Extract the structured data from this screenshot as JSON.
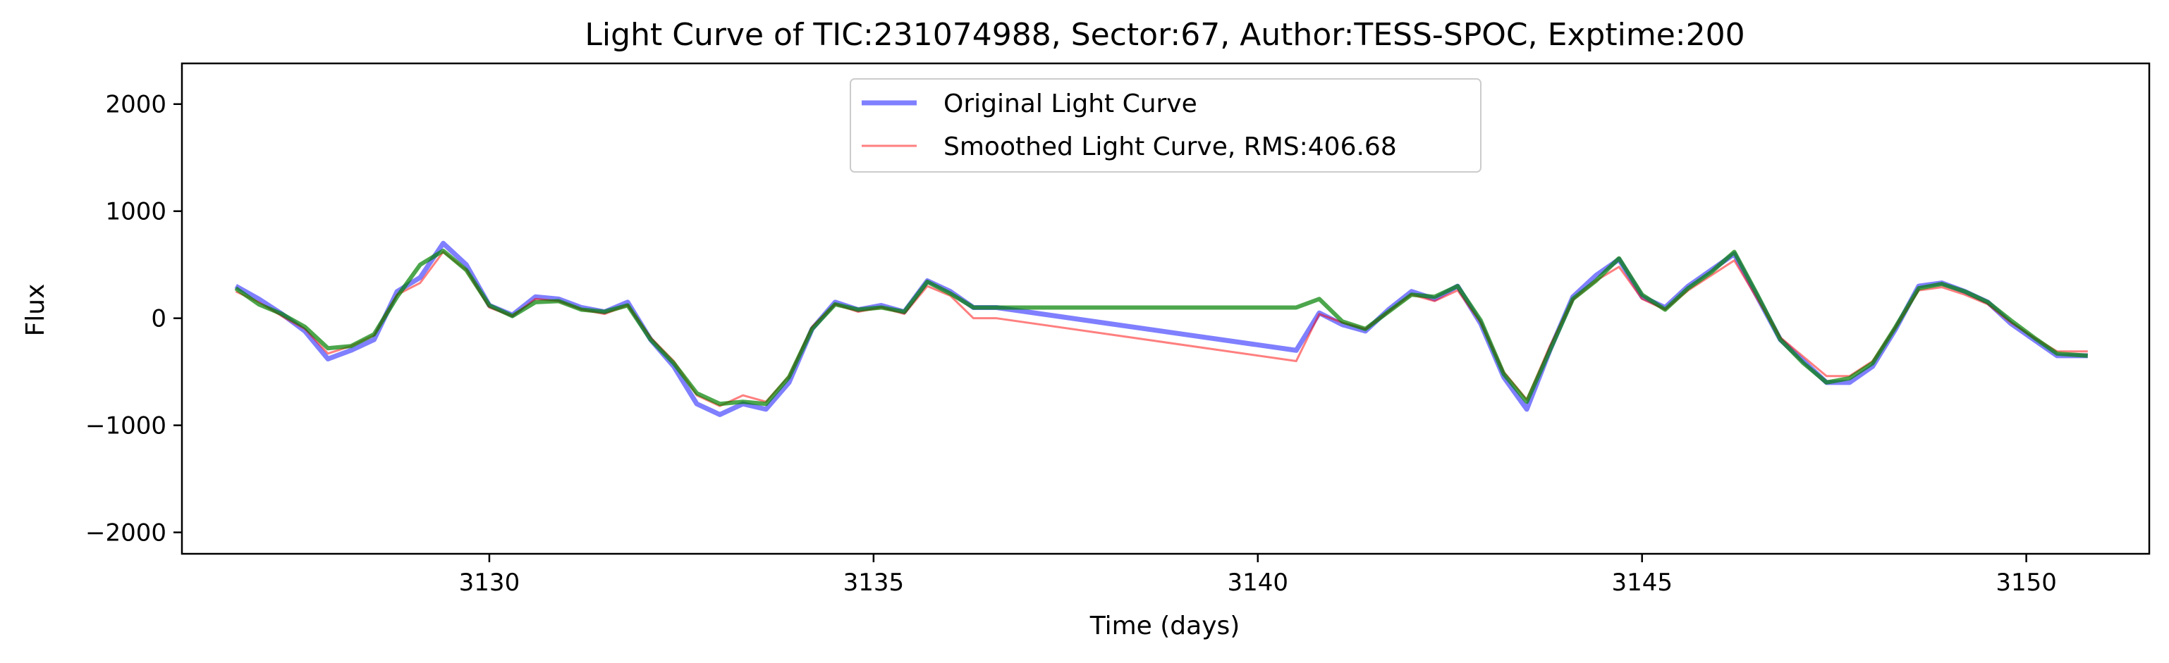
{
  "chart_data": {
    "type": "line",
    "title": "Light Curve of TIC:231074988, Sector:67, Author:TESS-SPOC, Exptime:200",
    "xlabel": "Time (days)",
    "ylabel": "Flux",
    "xlim": [
      3126.0,
      3151.6
    ],
    "ylim": [
      -2200,
      2380
    ],
    "x_ticks": [
      3130,
      3135,
      3140,
      3145,
      3150
    ],
    "x_tick_labels": [
      "3130",
      "3135",
      "3140",
      "3145",
      "3150"
    ],
    "y_ticks": [
      -2000,
      -1000,
      0,
      1000,
      2000
    ],
    "y_tick_labels": [
      "−2000",
      "−1000",
      "0",
      "1000",
      "2000"
    ],
    "grid": false,
    "legend_position": "top-center",
    "legend": [
      {
        "label": "Original Light Curve",
        "color": "#0000ff"
      },
      {
        "label": "Smoothed Light Curve, RMS:406.68",
        "color": "#ff0000"
      }
    ],
    "gap": [
      3136.6,
      3140.5
    ],
    "series": [
      {
        "name": "Original Light Curve",
        "color": "#0000ff",
        "opacity": 0.5,
        "x": [
          3126.7,
          3127.0,
          3127.3,
          3127.6,
          3127.9,
          3128.2,
          3128.5,
          3128.8,
          3129.1,
          3129.4,
          3129.7,
          3130.0,
          3130.3,
          3130.6,
          3130.9,
          3131.2,
          3131.5,
          3131.8,
          3132.1,
          3132.4,
          3132.7,
          3133.0,
          3133.3,
          3133.6,
          3133.9,
          3134.2,
          3134.5,
          3134.8,
          3135.1,
          3135.4,
          3135.7,
          3136.0,
          3136.3,
          3136.6,
          3140.5,
          3140.8,
          3141.1,
          3141.4,
          3141.7,
          3142.0,
          3142.3,
          3142.6,
          3142.9,
          3143.2,
          3143.5,
          3143.8,
          3144.1,
          3144.4,
          3144.7,
          3145.0,
          3145.3,
          3145.6,
          3145.9,
          3146.2,
          3146.5,
          3146.8,
          3147.1,
          3147.4,
          3147.7,
          3148.0,
          3148.3,
          3148.6,
          3148.9,
          3149.2,
          3149.5,
          3149.8,
          3150.1,
          3150.4,
          3150.8
        ],
        "y": [
          300,
          180,
          40,
          -120,
          -380,
          -300,
          -200,
          250,
          380,
          700,
          500,
          120,
          30,
          200,
          180,
          100,
          60,
          150,
          -200,
          -450,
          -800,
          -900,
          -800,
          -850,
          -600,
          -100,
          150,
          80,
          120,
          60,
          350,
          250,
          100,
          100,
          -300,
          50,
          -60,
          -120,
          80,
          250,
          180,
          300,
          -50,
          -550,
          -850,
          -300,
          200,
          400,
          550,
          200,
          100,
          300,
          450,
          600,
          200,
          -200,
          -400,
          -600,
          -600,
          -450,
          -100,
          300,
          330,
          250,
          150,
          -50,
          -200,
          -350,
          -350
        ]
      },
      {
        "name": "Smoothed Light Curve, RMS:406.68",
        "color": "#ff0000",
        "opacity": 0.5,
        "x": [
          3126.7,
          3127.0,
          3127.3,
          3127.6,
          3127.9,
          3128.2,
          3128.5,
          3128.8,
          3129.1,
          3129.4,
          3129.7,
          3130.0,
          3130.3,
          3130.6,
          3130.9,
          3131.2,
          3131.5,
          3131.8,
          3132.1,
          3132.4,
          3132.7,
          3133.0,
          3133.3,
          3133.6,
          3133.9,
          3134.2,
          3134.5,
          3134.8,
          3135.1,
          3135.4,
          3135.7,
          3136.0,
          3136.3,
          3136.6,
          3140.5,
          3140.8,
          3141.1,
          3141.4,
          3141.7,
          3142.0,
          3142.3,
          3142.6,
          3142.9,
          3143.2,
          3143.5,
          3143.8,
          3144.1,
          3144.4,
          3144.7,
          3145.0,
          3145.3,
          3145.6,
          3145.9,
          3146.2,
          3146.5,
          3146.8,
          3147.1,
          3147.4,
          3147.7,
          3148.0,
          3148.3,
          3148.6,
          3148.9,
          3149.2,
          3149.5,
          3149.8,
          3150.1,
          3150.4,
          3150.8
        ],
        "y": [
          250,
          150,
          20,
          -100,
          -330,
          -260,
          -160,
          220,
          330,
          620,
          450,
          100,
          20,
          180,
          160,
          80,
          40,
          120,
          -180,
          -400,
          -720,
          -820,
          -720,
          -780,
          -540,
          -80,
          130,
          60,
          100,
          40,
          300,
          210,
          0,
          0,
          -400,
          40,
          -40,
          -100,
          60,
          220,
          160,
          260,
          -40,
          -500,
          -760,
          -260,
          170,
          350,
          480,
          180,
          80,
          260,
          400,
          540,
          180,
          -180,
          -360,
          -540,
          -540,
          -400,
          -80,
          260,
          290,
          220,
          130,
          -40,
          -180,
          -310,
          -310
        ]
      },
      {
        "name": "",
        "color": "#008000",
        "opacity": 0.7,
        "x": [
          3126.7,
          3127.0,
          3127.3,
          3127.6,
          3127.9,
          3128.2,
          3128.5,
          3128.8,
          3129.1,
          3129.4,
          3129.7,
          3130.0,
          3130.3,
          3130.6,
          3130.9,
          3131.2,
          3131.5,
          3131.8,
          3132.1,
          3132.4,
          3132.7,
          3133.0,
          3133.3,
          3133.6,
          3133.9,
          3134.2,
          3134.5,
          3134.8,
          3135.1,
          3135.4,
          3135.7,
          3136.0,
          3136.3,
          3136.6,
          3140.5,
          3140.8,
          3141.1,
          3141.4,
          3141.7,
          3142.0,
          3142.3,
          3142.6,
          3142.9,
          3143.2,
          3143.5,
          3143.8,
          3144.1,
          3144.4,
          3144.7,
          3145.0,
          3145.3,
          3145.6,
          3145.9,
          3146.2,
          3146.5,
          3146.8,
          3147.1,
          3147.4,
          3147.7,
          3148.0,
          3148.3,
          3148.6,
          3148.9,
          3149.2,
          3149.5,
          3149.8,
          3150.1,
          3150.4,
          3150.8
        ],
        "y": [
          280,
          130,
          40,
          -80,
          -280,
          -260,
          -150,
          200,
          500,
          630,
          450,
          120,
          20,
          150,
          160,
          80,
          60,
          120,
          -200,
          -420,
          -700,
          -800,
          -780,
          -800,
          -550,
          -100,
          130,
          80,
          100,
          60,
          340,
          230,
          100,
          100,
          100,
          180,
          -30,
          -100,
          60,
          220,
          200,
          300,
          -20,
          -520,
          -780,
          -300,
          180,
          350,
          560,
          220,
          80,
          280,
          430,
          620,
          220,
          -200,
          -420,
          -600,
          -560,
          -420,
          -80,
          280,
          320,
          250,
          150,
          -20,
          -180,
          -330,
          -350
        ]
      }
    ]
  }
}
